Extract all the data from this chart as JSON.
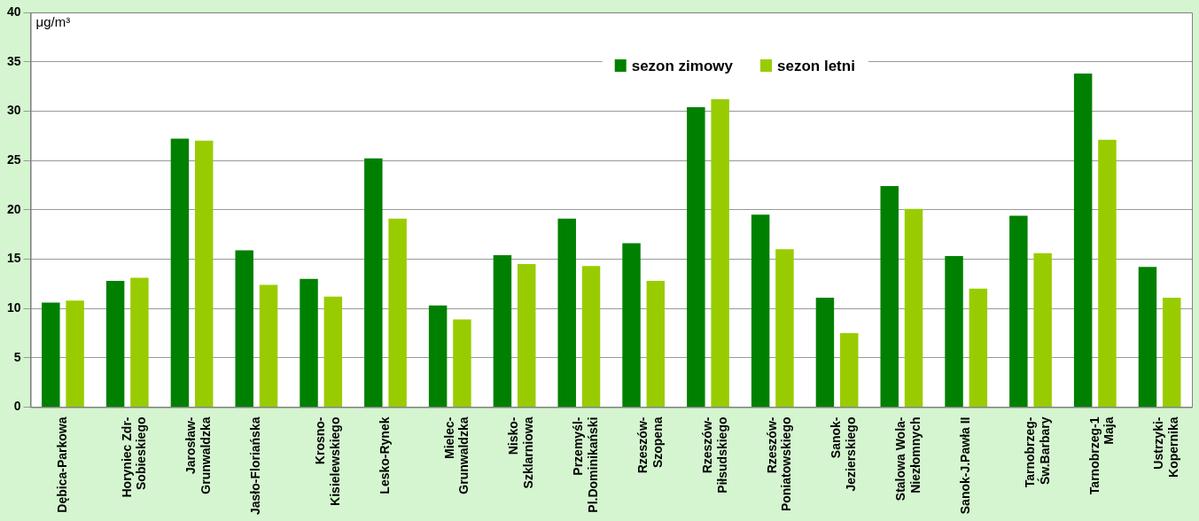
{
  "chart_data": {
    "type": "bar",
    "ylabel": "μg/m³",
    "categories": [
      "Dębica-Parkowa",
      "Horyniec Zdr-\nSobieskiego",
      "Jarosław-\nGrunwaldzka",
      "Jasło-Floriańska",
      "Krosno-\nKisielewskiego",
      "Lesko-Rynek",
      "Mielec-\nGrunwaldzka",
      "Nisko-\nSzklarniowa",
      "Przemyśl-\nPl.Dominikański",
      "Rzeszów-\nSzopena",
      "Rzeszów-\nPiłsudskiego",
      "Rzeszów-\nPoniatowskiego",
      "Sanok-\nJezierskiego",
      "Stalowa Wola-\nNiezłomnych",
      "Sanok-J.Pawła II",
      "Tarnobrzeg-\nŚw.Barbary",
      "Tarnobrzeg-1\nMaja",
      "Ustrzyki-\nKopernika"
    ],
    "series": [
      {
        "name": "sezon zimowy",
        "color": "#008000",
        "values": [
          10.6,
          12.8,
          27.2,
          15.9,
          13.0,
          25.2,
          10.3,
          15.4,
          19.1,
          16.6,
          30.4,
          19.5,
          11.1,
          22.4,
          15.3,
          19.4,
          33.8,
          14.2
        ]
      },
      {
        "name": "sezon letni",
        "color": "#99cc00",
        "values": [
          10.8,
          13.1,
          27.0,
          12.4,
          11.2,
          19.1,
          8.9,
          14.5,
          14.3,
          12.8,
          31.2,
          16.0,
          7.5,
          20.1,
          12.0,
          15.6,
          27.1,
          11.1
        ]
      }
    ],
    "ylim": [
      0,
      40
    ],
    "yticks": [
      0,
      5,
      10,
      15,
      20,
      25,
      30,
      35,
      40
    ],
    "grid": "y",
    "legend": "top"
  }
}
